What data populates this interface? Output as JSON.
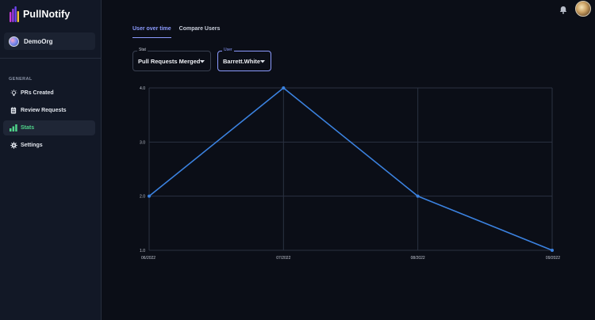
{
  "app": {
    "name": "PullNotify"
  },
  "org": {
    "name": "DemoOrg"
  },
  "sidebar": {
    "section_label": "GENERAL",
    "items": [
      {
        "label": "PRs Created",
        "icon": "lightbulb-icon"
      },
      {
        "label": "Review Requests",
        "icon": "clipboard-icon"
      },
      {
        "label": "Stats",
        "icon": "bar-chart-icon",
        "active": true
      },
      {
        "label": "Settings",
        "icon": "gear-icon"
      }
    ]
  },
  "tabs": [
    {
      "label": "User over time",
      "active": true
    },
    {
      "label": "Compare Users",
      "active": false
    }
  ],
  "filters": {
    "stat": {
      "label": "Stat",
      "value": "Pull Requests Merged"
    },
    "user": {
      "label": "User",
      "value": "Barrett.White"
    }
  },
  "colors": {
    "accent": "#8c9bff",
    "active_nav": "#4fd38a",
    "line": "#3b82e0",
    "background": "#0b0e17"
  },
  "chart_data": {
    "type": "line",
    "x": [
      "06/2022",
      "07/2022",
      "08/2022",
      "09/2022"
    ],
    "y_ticks": [
      "1.0",
      "2.0",
      "3.0",
      "4.0"
    ],
    "values": [
      2,
      4,
      2,
      1
    ],
    "ylim": [
      1,
      4
    ],
    "grid": true
  }
}
